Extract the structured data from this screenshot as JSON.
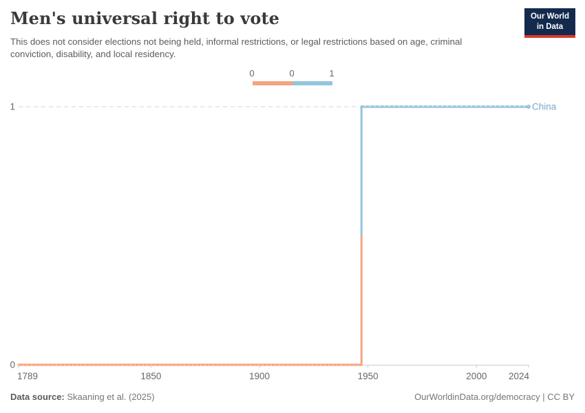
{
  "header": {
    "title": "Men's universal right to vote",
    "subtitle": "This does not consider elections not being held, informal restrictions, or legal restrictions based on age, criminal conviction, disability, and local residency.",
    "logo_line1": "Our World",
    "logo_line2": "in Data"
  },
  "footer": {
    "datasource_label": "Data source:",
    "datasource_value": " Skaaning et al. (2025)",
    "note": "OurWorldinData.org/democracy | CC BY"
  },
  "chart_data": {
    "type": "line",
    "title": "Men's universal right to vote",
    "entity_label": "China",
    "x": {
      "min": 1789,
      "max": 2024,
      "ticks": [
        1789,
        1850,
        1900,
        1950,
        2000,
        2024
      ],
      "tick_labels": [
        "1789",
        "1850",
        "1900",
        "1950",
        "2000",
        "2024"
      ]
    },
    "y": {
      "min": 0,
      "max": 1,
      "ticks": [
        0,
        1
      ],
      "tick_labels": [
        "0",
        "1"
      ]
    },
    "series": [
      {
        "name": "China",
        "step_year": 1947,
        "value_before": 0,
        "value_after": 1,
        "color_low": "#f4a47e",
        "color_high": "#93c4dd",
        "label_color": "#7ba6c4"
      }
    ],
    "legend": {
      "tick_labels": [
        "0",
        "0",
        "1"
      ],
      "segments": [
        {
          "value": 0,
          "color": "#f4a47e"
        },
        {
          "value": 1,
          "color": "#93c4dd"
        }
      ]
    },
    "grid": "dashed-horizontal",
    "legend_position": "top-center"
  }
}
